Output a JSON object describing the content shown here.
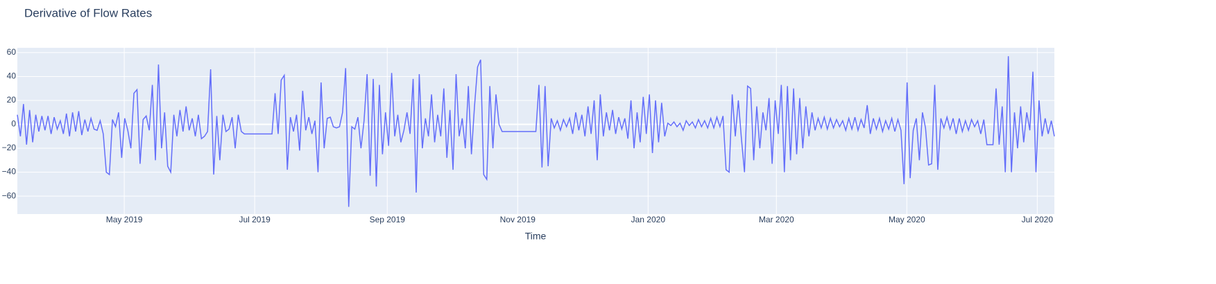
{
  "chart_data": {
    "type": "line",
    "title": "Derivative of Flow Rates",
    "x_label": "Time",
    "xlim": [
      "2019-03-12",
      "2020-07-09"
    ],
    "xticks": [
      {
        "value": "2019-05-01",
        "label": "May 2019"
      },
      {
        "value": "2019-07-01",
        "label": "Jul 2019"
      },
      {
        "value": "2019-09-01",
        "label": "Sep 2019"
      },
      {
        "value": "2019-11-01",
        "label": "Nov 2019"
      },
      {
        "value": "2020-01-01",
        "label": "Jan 2020"
      },
      {
        "value": "2020-03-01",
        "label": "Mar 2020"
      },
      {
        "value": "2020-05-01",
        "label": "May 2020"
      },
      {
        "value": "2020-07-01",
        "label": "Jul 2020"
      }
    ],
    "ylim": [
      -75,
      64
    ],
    "yticks": [
      {
        "value": -60,
        "label": "−60"
      },
      {
        "value": -40,
        "label": "−40"
      },
      {
        "value": -20,
        "label": "−20"
      },
      0,
      20,
      40,
      60
    ],
    "grid": true,
    "background": "#e5ecf6",
    "color": "#636efa",
    "values": [
      8,
      -10,
      17,
      -17,
      12,
      -15,
      8,
      -6,
      7,
      -5,
      7,
      -8,
      6,
      -4,
      3,
      -8,
      9,
      -10,
      10,
      -6,
      11,
      -9,
      4,
      -6,
      5,
      -4,
      -5,
      3,
      -8,
      -40,
      -42,
      4,
      -2,
      10,
      -28,
      5,
      -5,
      -20,
      26,
      29,
      -33,
      4,
      7,
      -5,
      33,
      -30,
      50,
      -20,
      10,
      -35,
      -40,
      8,
      -10,
      12,
      -6,
      15,
      -5,
      5,
      -10,
      8,
      -12,
      -10,
      -6,
      46,
      -42,
      7,
      -30,
      8,
      -6,
      -4,
      6,
      -20,
      8,
      -6,
      -8,
      -8,
      -8,
      -8,
      -8,
      -8,
      -8,
      -8,
      -8,
      -8,
      26,
      -8,
      37,
      41,
      -38,
      6,
      -6,
      8,
      -22,
      28,
      -5,
      6,
      -8,
      3,
      -40,
      35,
      -20,
      5,
      6,
      -2,
      -3,
      -2,
      10,
      47,
      -69,
      -2,
      -4,
      6,
      -20,
      3,
      42,
      -43,
      38,
      -52,
      33,
      -25,
      10,
      -18,
      43,
      -10,
      8,
      -15,
      -5,
      10,
      -8,
      38,
      -57,
      42,
      -20,
      5,
      -10,
      25,
      -15,
      8,
      -10,
      30,
      -28,
      12,
      -38,
      42,
      -10,
      5,
      -20,
      32,
      -25,
      15,
      48,
      54,
      -42,
      -46,
      32,
      -20,
      25,
      0,
      -6,
      -6,
      -6,
      -6,
      -6,
      -6,
      -6,
      -6,
      -6,
      -6,
      -6,
      -6,
      33,
      -36,
      32,
      -35,
      5,
      -3,
      3,
      -5,
      4,
      -2,
      5,
      -8,
      10,
      -5,
      8,
      -10,
      15,
      -8,
      20,
      -30,
      25,
      -10,
      10,
      -5,
      12,
      -8,
      6,
      -4,
      5,
      -12,
      20,
      -20,
      10,
      -15,
      23,
      -8,
      25,
      -24,
      20,
      -15,
      18,
      -10,
      1,
      -1,
      2,
      -2,
      1,
      -5,
      3,
      -1,
      2,
      -3,
      4,
      -2,
      3,
      -3,
      5,
      -3,
      6,
      -2,
      7,
      -38,
      -40,
      25,
      -10,
      20,
      -12,
      -40,
      32,
      30,
      -30,
      15,
      -20,
      10,
      -5,
      22,
      -33,
      20,
      -8,
      33,
      -40,
      32,
      -30,
      30,
      -25,
      22,
      -20,
      15,
      -10,
      10,
      -5,
      5,
      -3,
      6,
      -4,
      5,
      -3,
      4,
      -2,
      3,
      -5,
      5,
      -4,
      6,
      -5,
      4,
      -3,
      16,
      -8,
      5,
      -4,
      5,
      -6,
      3,
      -4,
      5,
      -6,
      4,
      -5,
      -50,
      35,
      -45,
      -5,
      5,
      -30,
      10,
      -3,
      -34,
      -33,
      33,
      -38,
      5,
      -3,
      6,
      -4,
      5,
      -8,
      5,
      -6,
      3,
      -5,
      4,
      -2,
      3,
      -8,
      4,
      -17,
      -17,
      -17,
      30,
      -17,
      15,
      -40,
      57,
      -40,
      10,
      -20,
      15,
      -15,
      10,
      -5,
      44,
      -40,
      20,
      -10,
      5,
      -8,
      3,
      -10
    ]
  }
}
